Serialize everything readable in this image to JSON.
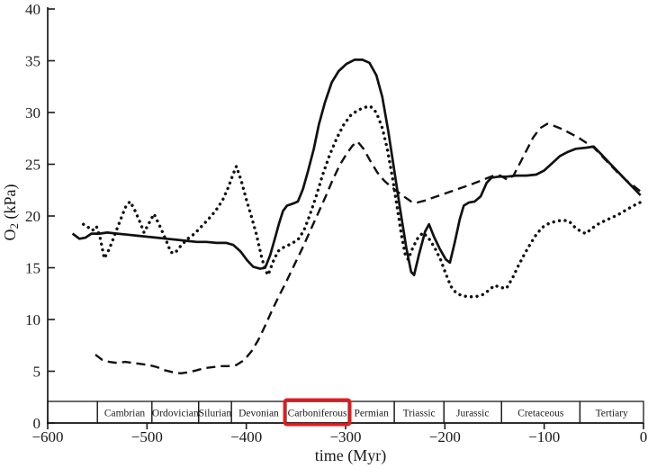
{
  "figure": {
    "background": "#ffffff",
    "axis_color": "#1a1a1a",
    "line_color": "#111111",
    "highlight_color": "#e8191c"
  },
  "chart_data": {
    "type": "line",
    "title": "",
    "xlabel": "time (Myr)",
    "ylabel": "O2 (kPa)",
    "ylabel_parts": [
      {
        "t": "O",
        "sub": false
      },
      {
        "t": "2",
        "sub": true
      },
      {
        "t": " (kPa)",
        "sub": false
      }
    ],
    "xlim": [
      -600,
      0
    ],
    "ylim": [
      0,
      40
    ],
    "grid": false,
    "legend": "none",
    "x_ticks": [
      {
        "value": -600,
        "label": "−600"
      },
      {
        "value": -500,
        "label": "−500"
      },
      {
        "value": -400,
        "label": "−400"
      },
      {
        "value": -300,
        "label": "−300"
      },
      {
        "value": -200,
        "label": "−200"
      },
      {
        "value": -100,
        "label": "−100"
      },
      {
        "value": 0,
        "label": "0"
      }
    ],
    "y_ticks": [
      {
        "value": 0,
        "label": "0"
      },
      {
        "value": 5,
        "label": "5"
      },
      {
        "value": 10,
        "label": "10"
      },
      {
        "value": 15,
        "label": "15"
      },
      {
        "value": 20,
        "label": "20"
      },
      {
        "value": 25,
        "label": "25"
      },
      {
        "value": 30,
        "label": "30"
      },
      {
        "value": 35,
        "label": "35"
      },
      {
        "value": 40,
        "label": "40"
      }
    ],
    "periods": [
      {
        "label": "",
        "start": -600,
        "end": -550,
        "highlighted": false
      },
      {
        "label": "Cambrian",
        "start": -550,
        "end": -495,
        "highlighted": false
      },
      {
        "label": "Ordovician",
        "start": -495,
        "end": -448,
        "highlighted": false
      },
      {
        "label": "Silurian",
        "start": -448,
        "end": -415,
        "highlighted": false
      },
      {
        "label": "Devonian",
        "start": -415,
        "end": -360,
        "highlighted": false
      },
      {
        "label": "Carboniferous",
        "start": -360,
        "end": -297,
        "highlighted": true
      },
      {
        "label": "Permian",
        "start": -297,
        "end": -251,
        "highlighted": false
      },
      {
        "label": "Triassic",
        "start": -251,
        "end": -201,
        "highlighted": false
      },
      {
        "label": "Jurassic",
        "start": -201,
        "end": -143,
        "highlighted": false
      },
      {
        "label": "Cretaceous",
        "start": -143,
        "end": -64,
        "highlighted": false
      },
      {
        "label": "Tertiary",
        "start": -64,
        "end": 0,
        "highlighted": false
      }
    ],
    "series": [
      {
        "name": "solid-line-series",
        "style": "solid",
        "points": [
          [
            -575,
            18.3
          ],
          [
            -568,
            17.8
          ],
          [
            -562,
            17.9
          ],
          [
            -556,
            18.3
          ],
          [
            -548,
            18.3
          ],
          [
            -540,
            18.4
          ],
          [
            -530,
            18.3
          ],
          [
            -520,
            18.2
          ],
          [
            -510,
            18.1
          ],
          [
            -500,
            18.0
          ],
          [
            -490,
            17.9
          ],
          [
            -480,
            17.8
          ],
          [
            -470,
            17.7
          ],
          [
            -460,
            17.6
          ],
          [
            -450,
            17.5
          ],
          [
            -440,
            17.5
          ],
          [
            -430,
            17.4
          ],
          [
            -420,
            17.4
          ],
          [
            -413,
            17.2
          ],
          [
            -406,
            16.6
          ],
          [
            -399,
            15.7
          ],
          [
            -393,
            15.1
          ],
          [
            -386,
            14.9
          ],
          [
            -381,
            15.0
          ],
          [
            -376,
            16.2
          ],
          [
            -371,
            17.9
          ],
          [
            -367,
            19.3
          ],
          [
            -363,
            20.5
          ],
          [
            -359,
            21.0
          ],
          [
            -353,
            21.2
          ],
          [
            -348,
            21.4
          ],
          [
            -343,
            22.6
          ],
          [
            -338,
            24.3
          ],
          [
            -332,
            26.5
          ],
          [
            -327,
            28.8
          ],
          [
            -321,
            30.9
          ],
          [
            -314,
            32.9
          ],
          [
            -307,
            34.0
          ],
          [
            -299,
            34.7
          ],
          [
            -291,
            35.1
          ],
          [
            -283,
            35.1
          ],
          [
            -276,
            34.8
          ],
          [
            -269,
            33.6
          ],
          [
            -263,
            31.5
          ],
          [
            -257,
            28.2
          ],
          [
            -251,
            24.4
          ],
          [
            -245,
            20.6
          ],
          [
            -239,
            17.0
          ],
          [
            -234,
            14.6
          ],
          [
            -231,
            14.3
          ],
          [
            -226,
            16.3
          ],
          [
            -220,
            18.5
          ],
          [
            -216,
            19.2
          ],
          [
            -211,
            18.0
          ],
          [
            -205,
            16.8
          ],
          [
            -199,
            15.8
          ],
          [
            -195,
            15.5
          ],
          [
            -190,
            17.5
          ],
          [
            -185,
            19.7
          ],
          [
            -181,
            21.0
          ],
          [
            -176,
            21.3
          ],
          [
            -170,
            21.4
          ],
          [
            -164,
            21.9
          ],
          [
            -158,
            23.2
          ],
          [
            -153,
            23.7
          ],
          [
            -146,
            23.8
          ],
          [
            -138,
            23.8
          ],
          [
            -128,
            23.9
          ],
          [
            -118,
            23.9
          ],
          [
            -108,
            24.0
          ],
          [
            -100,
            24.4
          ],
          [
            -92,
            25.1
          ],
          [
            -84,
            25.8
          ],
          [
            -76,
            26.2
          ],
          [
            -68,
            26.5
          ],
          [
            -58,
            26.6
          ],
          [
            -50,
            26.7
          ],
          [
            -42,
            25.9
          ],
          [
            -34,
            25.1
          ],
          [
            -26,
            24.3
          ],
          [
            -18,
            23.5
          ],
          [
            -10,
            22.7
          ],
          [
            -3,
            22.0
          ]
        ]
      },
      {
        "name": "dashed-line-series",
        "style": "dashed",
        "points": [
          [
            -552,
            6.6
          ],
          [
            -545,
            6.1
          ],
          [
            -538,
            5.9
          ],
          [
            -530,
            5.8
          ],
          [
            -522,
            5.9
          ],
          [
            -514,
            5.8
          ],
          [
            -506,
            5.7
          ],
          [
            -498,
            5.6
          ],
          [
            -490,
            5.4
          ],
          [
            -482,
            5.1
          ],
          [
            -474,
            4.9
          ],
          [
            -466,
            4.8
          ],
          [
            -458,
            4.9
          ],
          [
            -450,
            5.1
          ],
          [
            -442,
            5.3
          ],
          [
            -434,
            5.4
          ],
          [
            -426,
            5.5
          ],
          [
            -418,
            5.5
          ],
          [
            -410,
            5.6
          ],
          [
            -402,
            6.1
          ],
          [
            -395,
            6.9
          ],
          [
            -388,
            8.0
          ],
          [
            -381,
            9.4
          ],
          [
            -374,
            10.9
          ],
          [
            -367,
            12.3
          ],
          [
            -360,
            13.6
          ],
          [
            -352,
            15.2
          ],
          [
            -344,
            16.8
          ],
          [
            -336,
            18.5
          ],
          [
            -328,
            20.2
          ],
          [
            -320,
            21.9
          ],
          [
            -313,
            23.5
          ],
          [
            -306,
            24.9
          ],
          [
            -299,
            26.0
          ],
          [
            -293,
            26.8
          ],
          [
            -288,
            27.2
          ],
          [
            -282,
            26.5
          ],
          [
            -275,
            25.3
          ],
          [
            -268,
            24.2
          ],
          [
            -261,
            23.4
          ],
          [
            -254,
            22.8
          ],
          [
            -247,
            22.3
          ],
          [
            -240,
            21.8
          ],
          [
            -234,
            21.4
          ],
          [
            -228,
            21.3
          ],
          [
            -220,
            21.5
          ],
          [
            -211,
            21.8
          ],
          [
            -202,
            22.1
          ],
          [
            -193,
            22.4
          ],
          [
            -184,
            22.7
          ],
          [
            -175,
            23.0
          ],
          [
            -167,
            23.3
          ],
          [
            -159,
            23.6
          ],
          [
            -151,
            23.9
          ],
          [
            -144,
            23.9
          ],
          [
            -137,
            23.5
          ],
          [
            -131,
            23.9
          ],
          [
            -125,
            25.0
          ],
          [
            -118,
            26.3
          ],
          [
            -111,
            27.6
          ],
          [
            -104,
            28.5
          ],
          [
            -97,
            28.9
          ],
          [
            -90,
            28.7
          ],
          [
            -82,
            28.4
          ],
          [
            -74,
            28.0
          ],
          [
            -66,
            27.6
          ],
          [
            -58,
            27.1
          ],
          [
            -50,
            26.6
          ],
          [
            -42,
            25.8
          ],
          [
            -34,
            25.0
          ],
          [
            -26,
            24.2
          ],
          [
            -18,
            23.5
          ],
          [
            -10,
            22.9
          ],
          [
            -2,
            22.3
          ]
        ]
      },
      {
        "name": "dotted-line-series",
        "style": "dotted",
        "points": [
          [
            -564,
            19.2
          ],
          [
            -559,
            18.9
          ],
          [
            -555,
            18.6
          ],
          [
            -551,
            19.0
          ],
          [
            -547,
            17.8
          ],
          [
            -543,
            15.9
          ],
          [
            -538,
            16.8
          ],
          [
            -532,
            18.3
          ],
          [
            -526,
            19.8
          ],
          [
            -521,
            21.0
          ],
          [
            -517,
            21.4
          ],
          [
            -512,
            20.5
          ],
          [
            -507,
            19.4
          ],
          [
            -503,
            18.4
          ],
          [
            -498,
            19.3
          ],
          [
            -493,
            20.2
          ],
          [
            -487,
            19.0
          ],
          [
            -481,
            17.7
          ],
          [
            -476,
            16.5
          ],
          [
            -472,
            16.4
          ],
          [
            -466,
            17.1
          ],
          [
            -459,
            17.8
          ],
          [
            -452,
            18.3
          ],
          [
            -445,
            19.0
          ],
          [
            -438,
            19.7
          ],
          [
            -431,
            20.5
          ],
          [
            -424,
            21.5
          ],
          [
            -418,
            22.8
          ],
          [
            -413,
            24.1
          ],
          [
            -410,
            24.8
          ],
          [
            -405,
            23.4
          ],
          [
            -400,
            21.6
          ],
          [
            -395,
            20.0
          ],
          [
            -390,
            18.3
          ],
          [
            -385,
            16.2
          ],
          [
            -381,
            14.8
          ],
          [
            -378,
            14.3
          ],
          [
            -373,
            15.6
          ],
          [
            -368,
            16.6
          ],
          [
            -362,
            17.0
          ],
          [
            -355,
            17.3
          ],
          [
            -348,
            17.7
          ],
          [
            -342,
            18.6
          ],
          [
            -336,
            20.1
          ],
          [
            -330,
            21.8
          ],
          [
            -323,
            24.0
          ],
          [
            -316,
            25.9
          ],
          [
            -309,
            27.5
          ],
          [
            -302,
            28.8
          ],
          [
            -295,
            29.7
          ],
          [
            -288,
            30.2
          ],
          [
            -281,
            30.5
          ],
          [
            -275,
            30.6
          ],
          [
            -269,
            30.0
          ],
          [
            -263,
            28.5
          ],
          [
            -258,
            26.5
          ],
          [
            -253,
            23.8
          ],
          [
            -248,
            20.8
          ],
          [
            -244,
            18.3
          ],
          [
            -240,
            16.3
          ],
          [
            -237,
            15.8
          ],
          [
            -232,
            17.0
          ],
          [
            -227,
            17.9
          ],
          [
            -222,
            18.4
          ],
          [
            -216,
            17.8
          ],
          [
            -210,
            16.9
          ],
          [
            -204,
            15.7
          ],
          [
            -199,
            14.4
          ],
          [
            -194,
            13.2
          ],
          [
            -189,
            12.6
          ],
          [
            -183,
            12.3
          ],
          [
            -176,
            12.2
          ],
          [
            -169,
            12.2
          ],
          [
            -162,
            12.4
          ],
          [
            -156,
            12.8
          ],
          [
            -150,
            13.3
          ],
          [
            -144,
            13.1
          ],
          [
            -138,
            13.0
          ],
          [
            -132,
            14.0
          ],
          [
            -126,
            15.2
          ],
          [
            -120,
            16.3
          ],
          [
            -114,
            17.3
          ],
          [
            -108,
            18.2
          ],
          [
            -102,
            18.9
          ],
          [
            -95,
            19.3
          ],
          [
            -88,
            19.5
          ],
          [
            -81,
            19.6
          ],
          [
            -75,
            19.5
          ],
          [
            -69,
            18.9
          ],
          [
            -63,
            18.5
          ],
          [
            -58,
            18.3
          ],
          [
            -52,
            18.8
          ],
          [
            -46,
            19.2
          ],
          [
            -40,
            19.5
          ],
          [
            -33,
            19.8
          ],
          [
            -26,
            20.1
          ],
          [
            -19,
            20.5
          ],
          [
            -12,
            20.9
          ],
          [
            -6,
            21.2
          ],
          [
            -1,
            21.4
          ]
        ]
      }
    ]
  }
}
